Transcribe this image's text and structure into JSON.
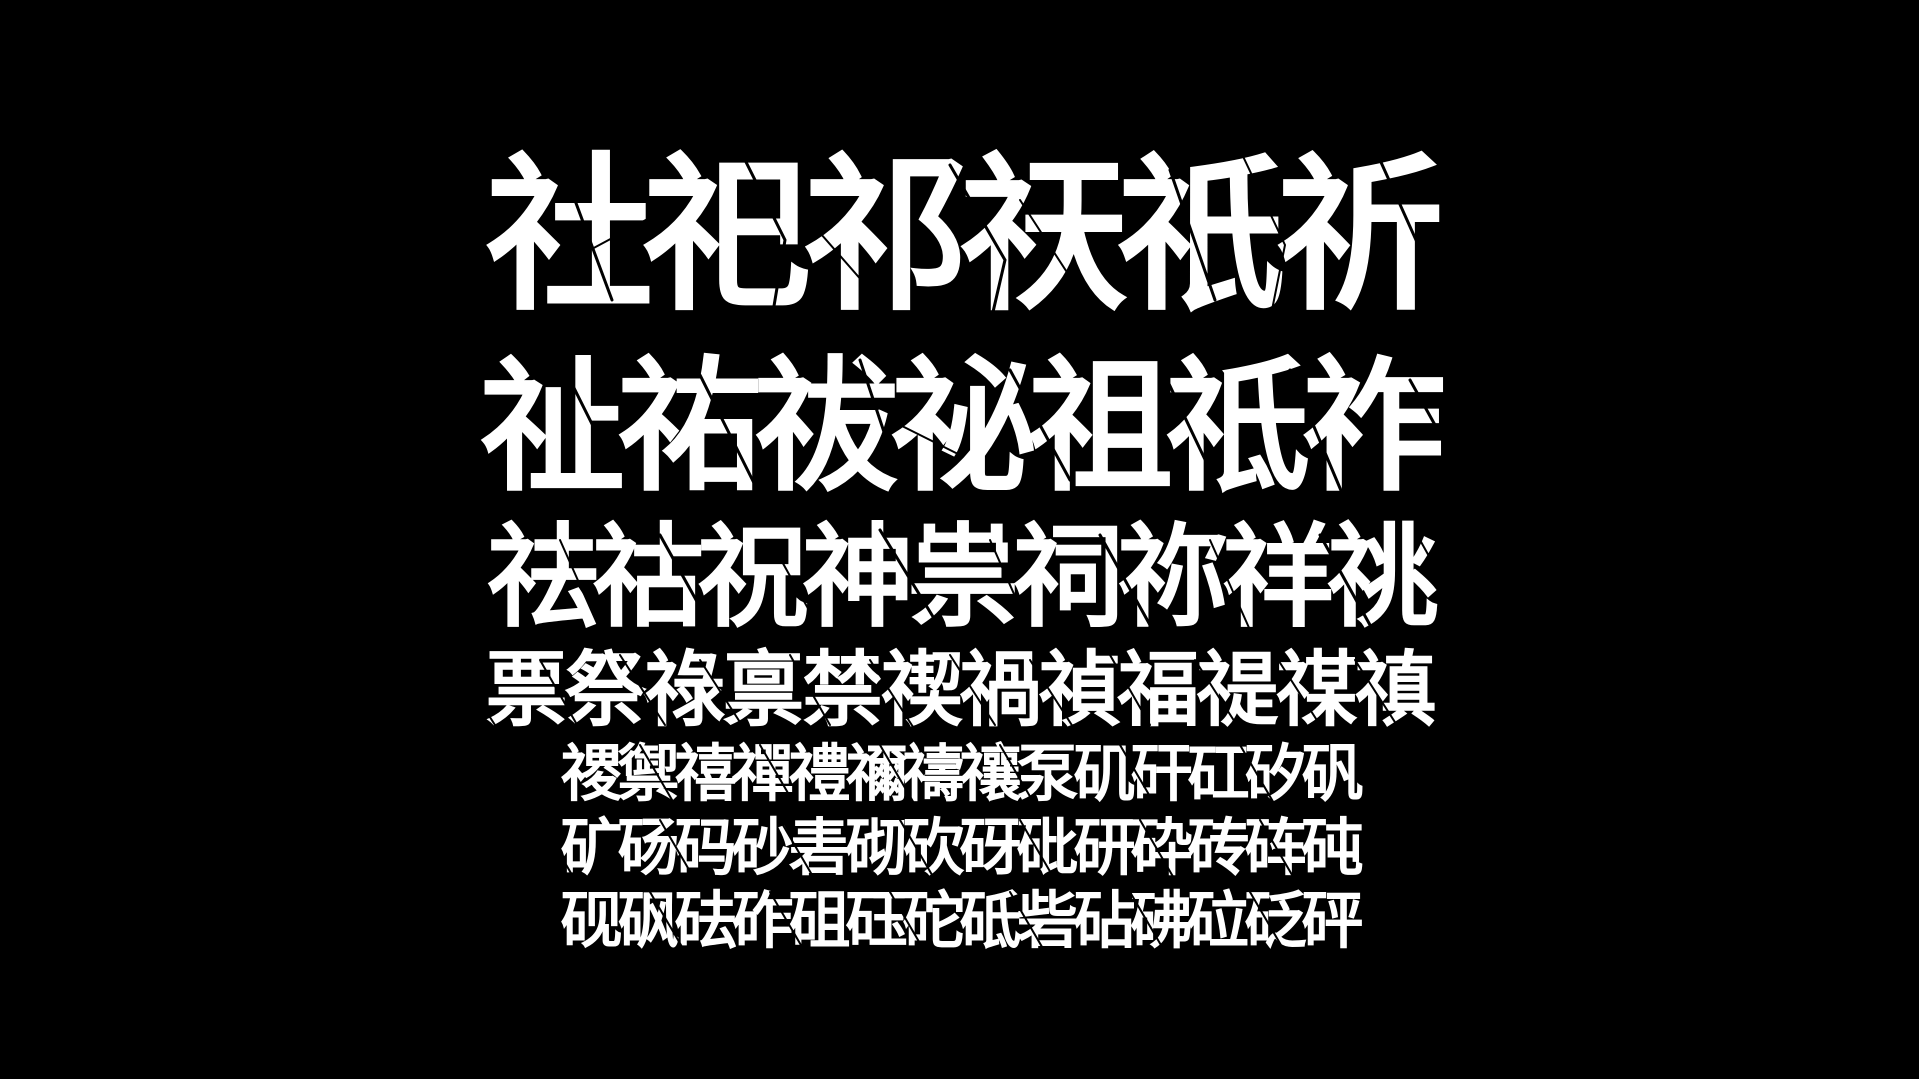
{
  "colors": {
    "background": "#000000",
    "text": "#ffffff"
  },
  "rows": [
    [
      "社",
      "祀",
      "祁",
      "祆",
      "祇",
      "祈"
    ],
    [
      "祉",
      "祐",
      "祓",
      "祕",
      "祖",
      "祗",
      "祚"
    ],
    [
      "祛",
      "祜",
      "祝",
      "神",
      "祟",
      "祠",
      "祢",
      "祥",
      "祧"
    ],
    [
      "票",
      "祭",
      "祿",
      "禀",
      "禁",
      "禊",
      "禍",
      "禎",
      "福",
      "禔",
      "禖",
      "禛"
    ],
    [
      "禝",
      "禦",
      "禧",
      "禪",
      "禮",
      "禰",
      "禱",
      "禳",
      "泵",
      "矶",
      "矸",
      "矼",
      "矽",
      "矾"
    ],
    [
      "矿",
      "砀",
      "码",
      "砂",
      "砉",
      "砌",
      "砍",
      "砑",
      "砒",
      "研",
      "砕",
      "砖",
      "砗",
      "砘"
    ],
    [
      "砚",
      "砜",
      "砝",
      "砟",
      "砠",
      "砡",
      "砣",
      "砥",
      "砦",
      "砧",
      "砩",
      "砬",
      "砭",
      "砰"
    ]
  ]
}
